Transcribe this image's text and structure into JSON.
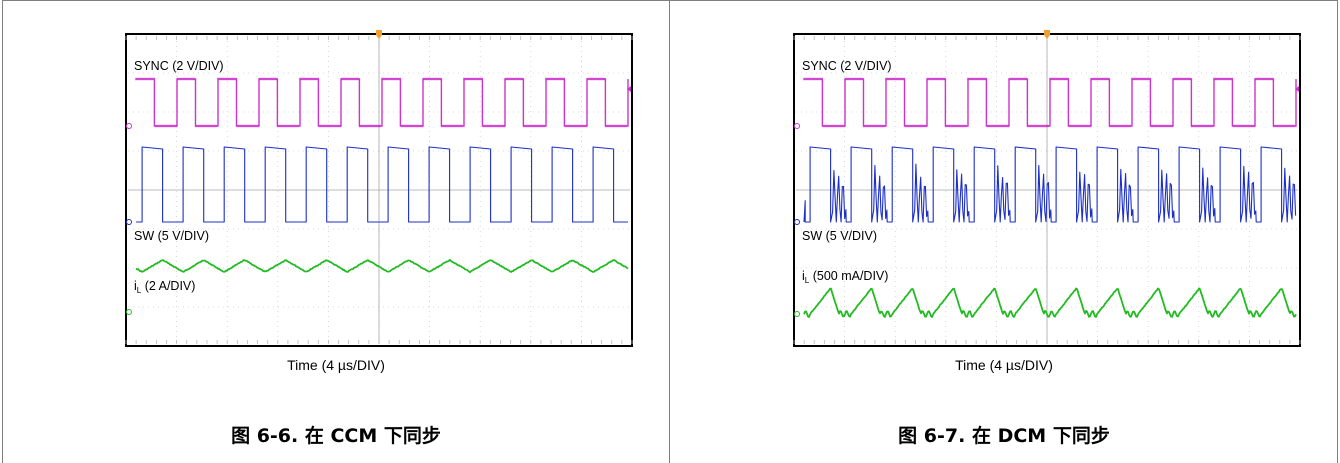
{
  "panels": [
    {
      "figure_label": "图 6-6.",
      "caption_text": "在 CCM 下同步",
      "time_label": "Time (4 µs/DIV)",
      "mode": "CCM",
      "traces": [
        {
          "label": "SYNC (2 V/DIV)",
          "color": "#cc33cc"
        },
        {
          "label": "SW (5 V/DIV)",
          "color": "#1c2fc9"
        },
        {
          "label_main": "i",
          "label_sub": "L",
          "label_rest": " (2 A/DIV)",
          "color": "#22bb22"
        }
      ]
    },
    {
      "figure_label": "图 6-7.",
      "caption_text": "在 DCM 下同步",
      "time_label": "Time (4 µs/DIV)",
      "mode": "DCM",
      "traces": [
        {
          "label": "SYNC (2 V/DIV)",
          "color": "#cc33cc"
        },
        {
          "label": "SW (5 V/DIV)",
          "color": "#1c2fc9"
        },
        {
          "label_main": "i",
          "label_sub": "L",
          "label_rest": " (500 mA/DIV)",
          "color": "#22bb22"
        }
      ]
    }
  ],
  "chart_data": [
    {
      "type": "line",
      "title": "",
      "xlabel": "Time (4 µs/DIV)",
      "periods": 12,
      "series": [
        {
          "name": "SYNC (2 V/DIV)",
          "waveform": "square"
        },
        {
          "name": "SW (5 V/DIV)",
          "waveform": "square"
        },
        {
          "name": "iL (2 A/DIV)",
          "waveform": "triangle"
        }
      ]
    },
    {
      "type": "line",
      "title": "",
      "xlabel": "Time (4 µs/DIV)",
      "periods": 12,
      "series": [
        {
          "name": "SYNC (2 V/DIV)",
          "waveform": "square"
        },
        {
          "name": "SW (5 V/DIV)",
          "waveform": "square with ringing"
        },
        {
          "name": "iL (500 mA/DIV)",
          "waveform": "discontinuous triangle"
        }
      ]
    }
  ]
}
